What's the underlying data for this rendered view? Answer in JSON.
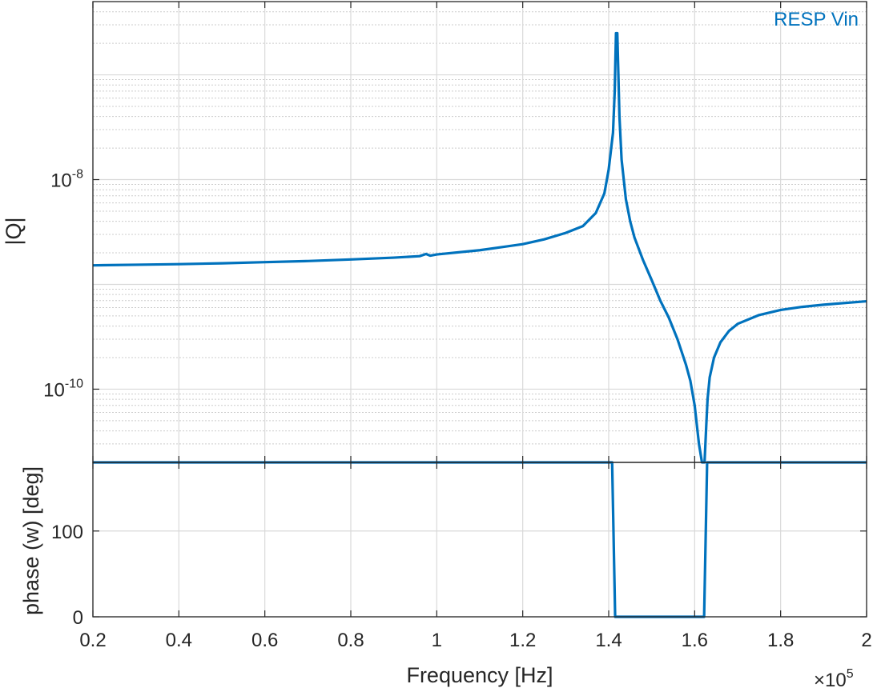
{
  "colors": {
    "series": "#0072BD",
    "axis": "#262626",
    "grid_major": "#d9d9d9",
    "grid_minor": "#cccccc",
    "background": "#ffffff"
  },
  "chart_data": [
    {
      "type": "line",
      "panel": "magnitude",
      "ylabel": "|Q|",
      "yscale": "log",
      "xlim": [
        20000,
        200000
      ],
      "ylim": [
        2e-11,
        5e-07
      ],
      "grid": true,
      "minor_grid": true,
      "ytick_base": "10",
      "yticks": [
        {
          "value": 1e-08,
          "exponent": "-8"
        },
        {
          "value": 1e-10,
          "exponent": "-10"
        }
      ],
      "legend": {
        "label": "RESP  Vin",
        "placement": "top-right"
      },
      "series": [
        {
          "name": "RESP  Vin",
          "x": [
            20000,
            30000,
            40000,
            50000,
            60000,
            70000,
            80000,
            90000,
            96000,
            97500,
            98500,
            100000,
            110000,
            120000,
            125000,
            130000,
            134000,
            137000,
            139000,
            140000,
            141000,
            141400,
            141700,
            142000,
            142500,
            143000,
            144000,
            145000,
            146000,
            148000,
            150000,
            152000,
            154000,
            156000,
            158000,
            159000,
            160000,
            161000,
            161700,
            162300,
            162700,
            163000,
            163500,
            164500,
            166000,
            168000,
            170000,
            175000,
            180000,
            185000,
            190000,
            200000
          ],
          "y": [
            1.52e-09,
            1.54e-09,
            1.56e-09,
            1.59e-09,
            1.63e-09,
            1.67e-09,
            1.73e-09,
            1.8e-09,
            1.86e-09,
            1.95e-09,
            1.88e-09,
            1.93e-09,
            2.12e-09,
            2.42e-09,
            2.69e-09,
            3.1e-09,
            3.6e-09,
            4.8e-09,
            7.4e-09,
            1.25e-08,
            2.8e-08,
            7e-08,
            2.5e-07,
            2.5e-07,
            4e-08,
            1.55e-08,
            6.5e-09,
            4e-09,
            2.8e-09,
            1.7e-09,
            1.1e-09,
            7e-10,
            4.8e-10,
            3e-10,
            1.7e-10,
            1.2e-10,
            7e-11,
            3e-11,
            2e-11,
            2e-11,
            4.5e-11,
            8e-11,
            1.3e-10,
            2e-10,
            2.8e-10,
            3.6e-10,
            4.2e-10,
            5.1e-10,
            5.7e-10,
            6.1e-10,
            6.4e-10,
            6.9e-10
          ]
        }
      ]
    },
    {
      "type": "line",
      "panel": "phase",
      "xlabel": "Frequency [Hz]",
      "ylabel": "phase (w) [deg]",
      "xlim": [
        20000,
        200000
      ],
      "ylim": [
        0,
        180
      ],
      "grid": true,
      "xtick_labels": [
        "0.2",
        "0.4",
        "0.6",
        "0.8",
        "1",
        "1.2",
        "1.4",
        "1.6",
        "1.8",
        "2"
      ],
      "xtick_values": [
        20000,
        40000,
        60000,
        80000,
        100000,
        120000,
        140000,
        160000,
        180000,
        200000
      ],
      "x_multiplier_base": "×10",
      "x_multiplier_exp": "5",
      "ytick_labels": [
        "100",
        "0"
      ],
      "ytick_values": [
        100,
        0
      ],
      "series": [
        {
          "name": "RESP  Vin",
          "x": [
            20000,
            140800,
            141500,
            162200,
            162900,
            200000
          ],
          "y": [
            180,
            180,
            0,
            0,
            180,
            180
          ]
        }
      ]
    }
  ]
}
